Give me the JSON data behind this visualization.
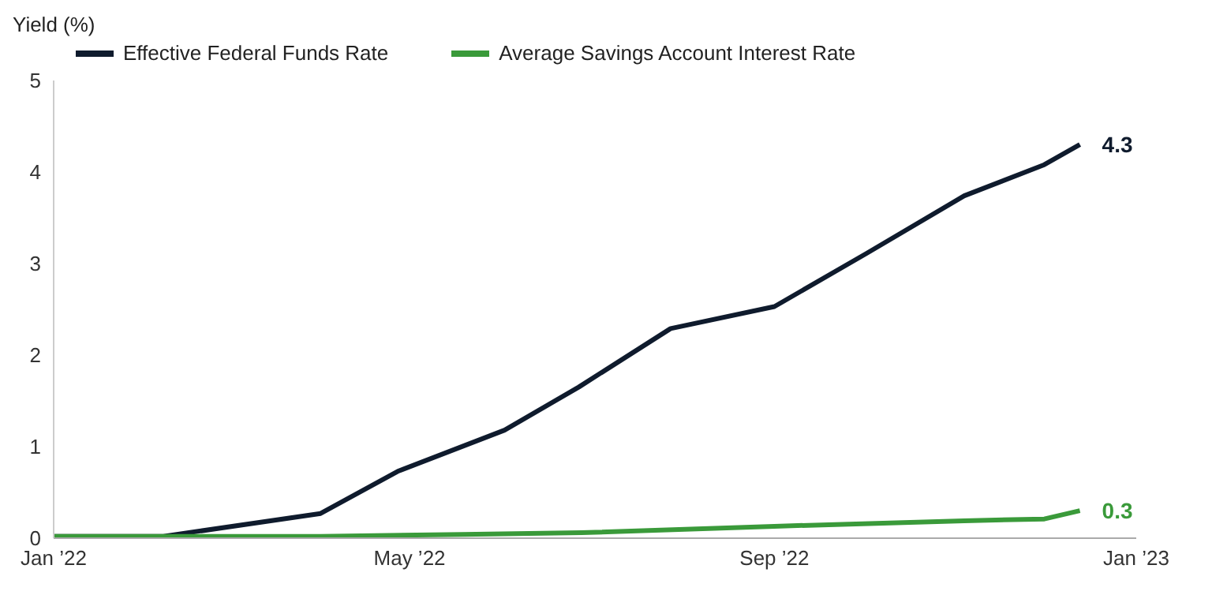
{
  "chart_data": {
    "type": "line",
    "ylabel": "Yield (%)",
    "xlim": [
      "2022-01-01",
      "2023-01-01"
    ],
    "xticks": [
      {
        "value": "2022-01-01",
        "label": "Jan ’22"
      },
      {
        "value": "2022-05-01",
        "label": "May ’22"
      },
      {
        "value": "2022-09-01",
        "label": "Sep ’22"
      },
      {
        "value": "2023-01-01",
        "label": "Jan ’23"
      }
    ],
    "ylim": [
      0,
      5
    ],
    "yticks": [
      0,
      1,
      2,
      3,
      4,
      5
    ],
    "series": [
      {
        "name": "Effective Federal Funds Rate",
        "color": "#0f1b2d",
        "x": [
          "2022-01-01",
          "2022-02-07",
          "2022-04-01",
          "2022-04-27",
          "2022-06-02",
          "2022-06-27",
          "2022-07-28",
          "2022-09-01",
          "2022-10-02",
          "2022-11-04",
          "2022-12-01",
          "2022-12-13"
        ],
        "values": [
          0.02,
          0.02,
          0.27,
          0.73,
          1.18,
          1.65,
          2.29,
          2.53,
          3.11,
          3.74,
          4.08,
          4.3
        ],
        "value_labels": [
          null,
          null,
          null,
          null,
          null,
          null,
          null,
          null,
          null,
          null,
          null,
          "4.3"
        ]
      },
      {
        "name": "Average Savings Account Interest Rate",
        "color": "#3a9a3a",
        "x": [
          "2022-01-01",
          "2022-04-01",
          "2022-05-19",
          "2022-06-28",
          "2022-09-01",
          "2022-11-04",
          "2022-12-01",
          "2022-12-13"
        ],
        "values": [
          0.02,
          0.02,
          0.04,
          0.06,
          0.13,
          0.19,
          0.21,
          0.3
        ],
        "value_labels": [
          null,
          null,
          null,
          null,
          null,
          null,
          null,
          "0.3"
        ]
      }
    ],
    "grid": false,
    "legend": "top left",
    "marker": "none",
    "line_style": "solid"
  }
}
